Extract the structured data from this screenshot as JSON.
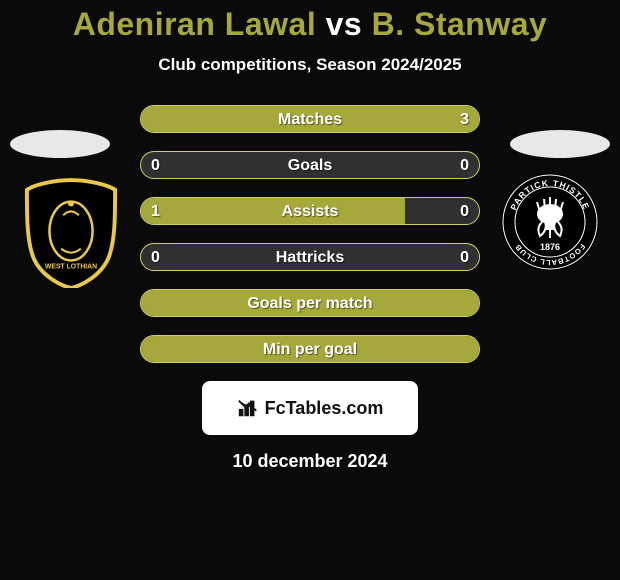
{
  "title_color": "#a6a83b",
  "title_parts": {
    "p1": "Adeniran Lawal",
    "vs": "vs",
    "p2": "B. Stanway"
  },
  "vs_color": "#ffffff",
  "subtitle": "Club competitions, Season 2024/2025",
  "bar_colors": {
    "fill": "#a6a83b",
    "empty": "#303030",
    "border": "#d0d060"
  },
  "stats": [
    {
      "label": "Matches",
      "left_val": "",
      "right_val": "3",
      "left_pct": 0,
      "right_pct": 100
    },
    {
      "label": "Goals",
      "left_val": "0",
      "right_val": "0",
      "left_pct": 0,
      "right_pct": 0
    },
    {
      "label": "Assists",
      "left_val": "1",
      "right_val": "0",
      "left_pct": 78,
      "right_pct": 0
    },
    {
      "label": "Hattricks",
      "left_val": "0",
      "right_val": "0",
      "left_pct": 0,
      "right_pct": 0
    },
    {
      "label": "Goals per match",
      "left_val": "",
      "right_val": "",
      "left_pct": 100,
      "right_pct": 0
    },
    {
      "label": "Min per goal",
      "left_val": "",
      "right_val": "",
      "left_pct": 100,
      "right_pct": 0
    }
  ],
  "watermark": "FcTables.com",
  "date": "10 december 2024",
  "badges": {
    "left": {
      "shield_fill": "#000000",
      "shield_stroke": "#e8c94a",
      "accent": "#e8c94a"
    },
    "right": {
      "circle_fill": "#000000",
      "band_fill": "#ffffff",
      "thistle_fill": "#ffffff",
      "text_top": "PARTICK THISTLE",
      "text_bot": "FOOTBALL CLUB",
      "year": "1876"
    }
  }
}
